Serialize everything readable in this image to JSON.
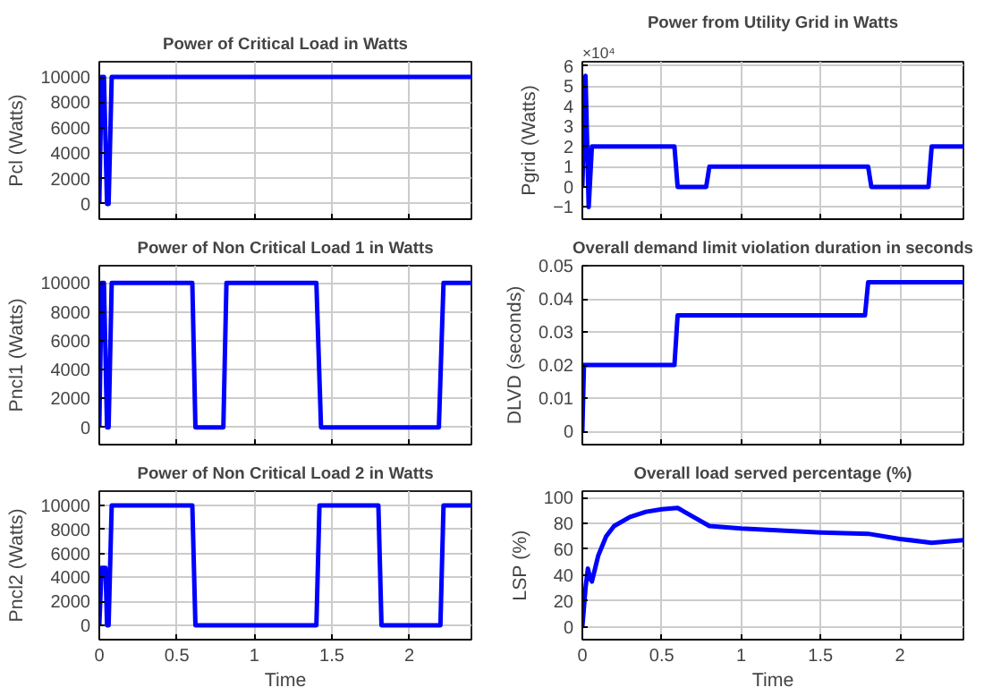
{
  "chart_data": [
    {
      "type": "line",
      "title": "Power of Critical Load in Watts",
      "ylabel": "Pcl (Watts)",
      "tick_labels": "y",
      "grid": true,
      "xlim": [
        0,
        2.4
      ],
      "xticks": [
        {
          "value": 0,
          "label": null
        },
        {
          "value": 0.5,
          "label": null
        },
        {
          "value": 1,
          "label": null
        },
        {
          "value": 1.5,
          "label": null
        },
        {
          "value": 2,
          "label": null
        }
      ],
      "ylim": [
        -1200,
        11200
      ],
      "yticks": [
        0,
        2000,
        4000,
        6000,
        8000,
        10000
      ],
      "series": [
        {
          "color": "#0000ff",
          "x": [
            0,
            0.015,
            0.03,
            0.05,
            0.06,
            0.08,
            2.4
          ],
          "values": [
            0,
            10000,
            10000,
            0,
            0,
            10000,
            10000
          ]
        }
      ]
    },
    {
      "type": "line",
      "title": "Power from Utility Grid in Watts",
      "ylabel": "Pgrid (Watts)",
      "annotations": [
        "×10⁴"
      ],
      "tick_labels": "y",
      "grid": true,
      "xlim": [
        0,
        2.4
      ],
      "xticks": [
        {
          "value": 0,
          "label": null
        },
        {
          "value": 0.5,
          "label": null
        },
        {
          "value": 1,
          "label": null
        },
        {
          "value": 1.5,
          "label": null
        },
        {
          "value": 2,
          "label": null
        }
      ],
      "ylim": [
        -1.6,
        6.2
      ],
      "yticks": [
        -1,
        0,
        1,
        2,
        3,
        4,
        5,
        6
      ],
      "series": [
        {
          "color": "#0000ff",
          "x": [
            0,
            0.02,
            0.04,
            0.06,
            0.58,
            0.6,
            0.78,
            0.8,
            1.8,
            1.82,
            2.18,
            2.2,
            2.4
          ],
          "values": [
            0,
            5.5,
            -1,
            2,
            2,
            0,
            0,
            1,
            1,
            0,
            0,
            2,
            2
          ]
        }
      ]
    },
    {
      "type": "line",
      "title": "Power of Non Critical Load 1 in Watts",
      "ylabel": "Pncl1 (Watts)",
      "tick_labels": "y",
      "grid": true,
      "xlim": [
        0,
        2.4
      ],
      "xticks": [
        {
          "value": 0,
          "label": null
        },
        {
          "value": 0.5,
          "label": null
        },
        {
          "value": 1,
          "label": null
        },
        {
          "value": 1.5,
          "label": null
        },
        {
          "value": 2,
          "label": null
        }
      ],
      "ylim": [
        -1200,
        11200
      ],
      "yticks": [
        0,
        2000,
        4000,
        6000,
        8000,
        10000
      ],
      "series": [
        {
          "color": "#0000ff",
          "x": [
            0,
            0.015,
            0.03,
            0.05,
            0.06,
            0.08,
            0.6,
            0.62,
            0.8,
            0.82,
            1.4,
            1.43,
            2.19,
            2.22,
            2.4
          ],
          "values": [
            0,
            10000,
            10000,
            0,
            0,
            10000,
            10000,
            0,
            0,
            10000,
            10000,
            0,
            0,
            10000,
            10000
          ]
        }
      ]
    },
    {
      "type": "line",
      "title": "Overall demand limit violation duration in seconds",
      "ylabel": "DLVD (seconds)",
      "tick_labels": "y",
      "grid": true,
      "xlim": [
        0,
        2.4
      ],
      "xticks": [
        {
          "value": 0,
          "label": null
        },
        {
          "value": 0.5,
          "label": null
        },
        {
          "value": 1,
          "label": null
        },
        {
          "value": 1.5,
          "label": null
        },
        {
          "value": 2,
          "label": null
        }
      ],
      "ylim": [
        -0.004,
        0.05
      ],
      "yticks": [
        0,
        0.01,
        0.02,
        0.03,
        0.04,
        0.05
      ],
      "series": [
        {
          "color": "#0000ff",
          "x": [
            0,
            0.01,
            0.58,
            0.6,
            1.78,
            1.8,
            2.4
          ],
          "values": [
            0,
            0.02,
            0.02,
            0.035,
            0.035,
            0.045,
            0.045
          ]
        }
      ]
    },
    {
      "type": "line",
      "title": "Power of Non Critical Load 2 in Watts",
      "xlabel": "Time",
      "ylabel": "Pncl2 (Watts)",
      "grid": true,
      "xlim": [
        0,
        2.4
      ],
      "xticks": [
        0,
        0.5,
        1,
        1.5,
        2
      ],
      "ylim": [
        -1200,
        11200
      ],
      "yticks": [
        0,
        2000,
        4000,
        6000,
        8000,
        10000
      ],
      "series": [
        {
          "color": "#0000ff",
          "x": [
            0,
            0.015,
            0.04,
            0.05,
            0.06,
            0.08,
            0.6,
            0.62,
            1.4,
            1.42,
            1.8,
            1.82,
            2.2,
            2.22,
            2.4
          ],
          "values": [
            0,
            4800,
            4800,
            0,
            0,
            10000,
            10000,
            0,
            0,
            10000,
            10000,
            0,
            0,
            10000,
            10000
          ]
        }
      ]
    },
    {
      "type": "line",
      "title": "Overall load served percentage (%)",
      "xlabel": "Time",
      "ylabel": "LSP (%)",
      "grid": true,
      "xlim": [
        0,
        2.4
      ],
      "xticks": [
        0,
        0.5,
        1,
        1.5,
        2
      ],
      "ylim": [
        -10,
        105
      ],
      "yticks": [
        0,
        20,
        40,
        60,
        80,
        100
      ],
      "series": [
        {
          "color": "#0000ff",
          "x": [
            0,
            0.02,
            0.035,
            0.05,
            0.06,
            0.08,
            0.1,
            0.15,
            0.2,
            0.3,
            0.4,
            0.5,
            0.6,
            0.7,
            0.8,
            1.0,
            1.5,
            1.8,
            2.0,
            2.2,
            2.4
          ],
          "values": [
            0,
            30,
            45,
            37,
            35,
            45,
            55,
            70,
            78,
            85,
            89,
            91,
            92,
            85,
            78,
            76,
            73,
            72,
            68,
            65,
            67
          ]
        }
      ]
    }
  ]
}
